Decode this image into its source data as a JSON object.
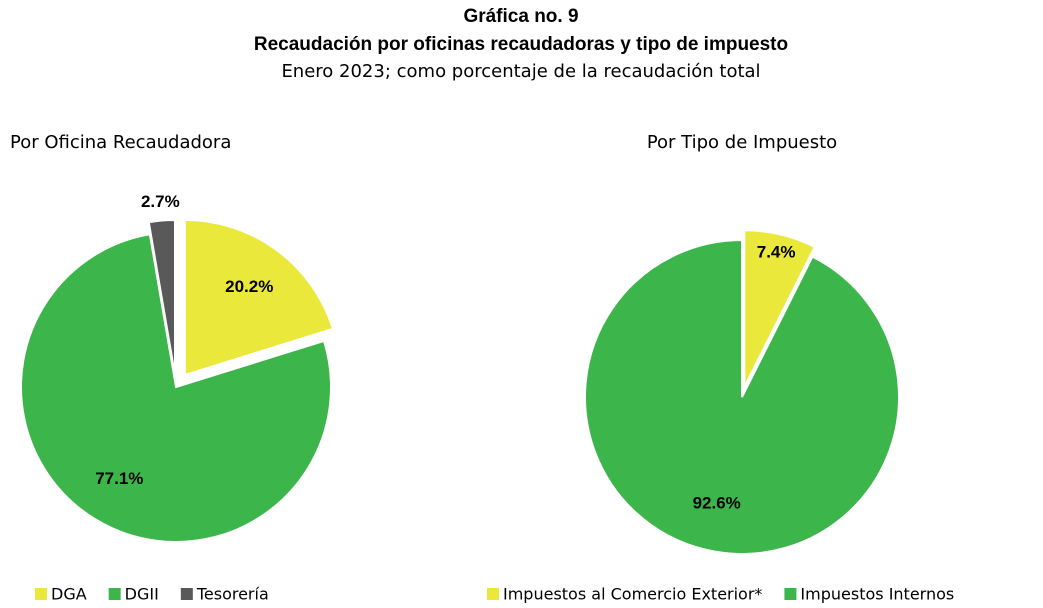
{
  "header": {
    "title": "Gráfica no. 9",
    "title2": "Recaudación por oficinas recaudadoras y tipo de impuesto",
    "subtitle": "Enero 2023; como porcentaje de la recaudación total"
  },
  "chart_data": [
    {
      "type": "pie",
      "title": "Por Oficina Recaudadora",
      "categories": [
        "DGA",
        "DGII",
        "Tesorería"
      ],
      "values": [
        20.2,
        77.1,
        2.7
      ],
      "value_labels": [
        "20.2%",
        "77.1%",
        "2.7%"
      ],
      "colors": [
        "#ebe83c",
        "#3cb54a",
        "#595959"
      ],
      "legend": "bottom"
    },
    {
      "type": "pie",
      "title": "Por Tipo de Impuesto",
      "categories": [
        "Impuestos al Comercio Exterior*",
        "Impuestos Internos"
      ],
      "values": [
        7.4,
        92.6
      ],
      "value_labels": [
        "7.4%",
        "92.6%"
      ],
      "colors": [
        "#ebe83c",
        "#3cb54a"
      ],
      "legend": "bottom"
    }
  ]
}
